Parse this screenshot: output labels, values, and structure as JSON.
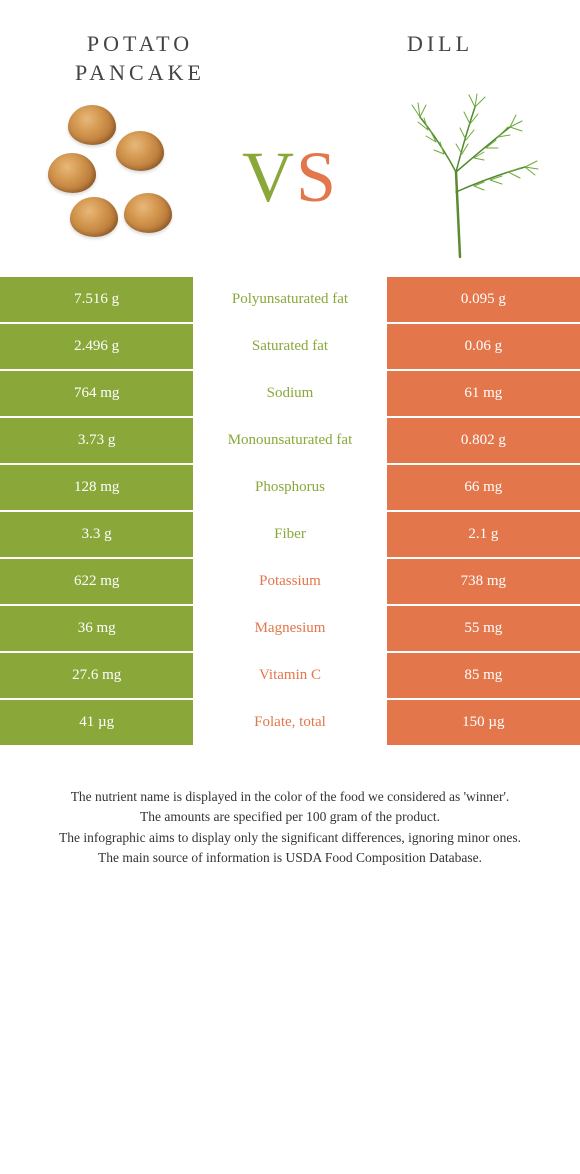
{
  "colors": {
    "green": "#8aa83a",
    "orange": "#e4764b"
  },
  "left": {
    "title": "POTATO PANCAKE"
  },
  "right": {
    "title": "DILL"
  },
  "vs": {
    "v": "V",
    "s": "S"
  },
  "rows": [
    {
      "left": "7.516 g",
      "label": "Polyunsaturated fat",
      "right": "0.095 g",
      "winner": "left"
    },
    {
      "left": "2.496 g",
      "label": "Saturated fat",
      "right": "0.06 g",
      "winner": "left"
    },
    {
      "left": "764 mg",
      "label": "Sodium",
      "right": "61 mg",
      "winner": "left"
    },
    {
      "left": "3.73 g",
      "label": "Monounsaturated fat",
      "right": "0.802 g",
      "winner": "left"
    },
    {
      "left": "128 mg",
      "label": "Phosphorus",
      "right": "66 mg",
      "winner": "left"
    },
    {
      "left": "3.3 g",
      "label": "Fiber",
      "right": "2.1 g",
      "winner": "left"
    },
    {
      "left": "622 mg",
      "label": "Potassium",
      "right": "738 mg",
      "winner": "right"
    },
    {
      "left": "36 mg",
      "label": "Magnesium",
      "right": "55 mg",
      "winner": "right"
    },
    {
      "left": "27.6 mg",
      "label": "Vitamin C",
      "right": "85 mg",
      "winner": "right"
    },
    {
      "left": "41 µg",
      "label": "Folate, total",
      "right": "150 µg",
      "winner": "right"
    }
  ],
  "footer": {
    "l1": "The nutrient name is displayed in the color of the food we considered as 'winner'.",
    "l2": "The amounts are specified per 100 gram of the product.",
    "l3": "The infographic aims to display only the significant differences, ignoring minor ones.",
    "l4": "The main source of information is USDA Food Composition Database."
  }
}
